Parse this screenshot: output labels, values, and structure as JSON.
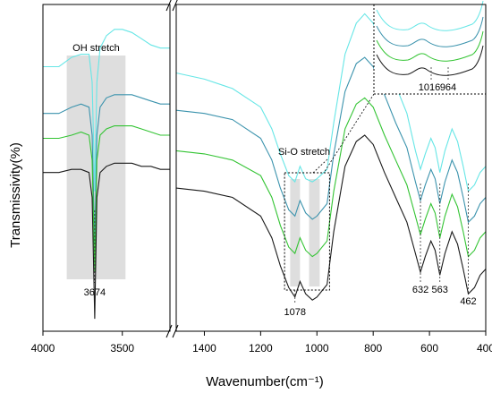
{
  "chart_data": {
    "type": "line",
    "ylabel": "Transmissivity(%)",
    "xlabel": "Wavenumber(cm⁻¹)",
    "left_panel": {
      "xlim": [
        4000,
        3200
      ],
      "ticks": [
        "4000",
        "3500"
      ],
      "tick_values": [
        4000,
        3500
      ],
      "annotation": {
        "label": "OH stretch",
        "band": [
          3850,
          3480
        ]
      },
      "peak_labels": [
        {
          "x": 3674,
          "text": "3674"
        }
      ],
      "series": [
        {
          "color": "#66e6e6",
          "points": [
            [
              4000,
              0.7
            ],
            [
              3900,
              0.7
            ],
            [
              3820,
              0.73
            ],
            [
              3760,
              0.74
            ],
            [
              3710,
              0.74
            ],
            [
              3690,
              0.65
            ],
            [
              3674,
              0.3
            ],
            [
              3660,
              0.65
            ],
            [
              3640,
              0.76
            ],
            [
              3600,
              0.8
            ],
            [
              3550,
              0.82
            ],
            [
              3500,
              0.82
            ],
            [
              3440,
              0.81
            ],
            [
              3380,
              0.79
            ],
            [
              3320,
              0.77
            ],
            [
              3260,
              0.76
            ],
            [
              3200,
              0.76
            ]
          ]
        },
        {
          "color": "#3b93ad",
          "points": [
            [
              4000,
              0.55
            ],
            [
              3900,
              0.55
            ],
            [
              3820,
              0.57
            ],
            [
              3760,
              0.58
            ],
            [
              3710,
              0.57
            ],
            [
              3690,
              0.48
            ],
            [
              3674,
              0.13
            ],
            [
              3660,
              0.48
            ],
            [
              3640,
              0.57
            ],
            [
              3600,
              0.6
            ],
            [
              3550,
              0.61
            ],
            [
              3500,
              0.61
            ],
            [
              3440,
              0.61
            ],
            [
              3380,
              0.6
            ],
            [
              3320,
              0.59
            ],
            [
              3260,
              0.58
            ],
            [
              3200,
              0.58
            ]
          ]
        },
        {
          "color": "#33c433",
          "points": [
            [
              4000,
              0.47
            ],
            [
              3900,
              0.47
            ],
            [
              3820,
              0.48
            ],
            [
              3760,
              0.49
            ],
            [
              3710,
              0.48
            ],
            [
              3690,
              0.4
            ],
            [
              3674,
              0.04
            ],
            [
              3660,
              0.4
            ],
            [
              3640,
              0.48
            ],
            [
              3600,
              0.5
            ],
            [
              3550,
              0.51
            ],
            [
              3500,
              0.51
            ],
            [
              3440,
              0.51
            ],
            [
              3380,
              0.5
            ],
            [
              3320,
              0.49
            ],
            [
              3260,
              0.48
            ],
            [
              3200,
              0.48
            ]
          ]
        },
        {
          "color": "#1a1a1a",
          "points": [
            [
              4000,
              0.36
            ],
            [
              3900,
              0.36
            ],
            [
              3820,
              0.37
            ],
            [
              3760,
              0.37
            ],
            [
              3710,
              0.36
            ],
            [
              3690,
              0.28
            ],
            [
              3674,
              -0.11
            ],
            [
              3660,
              0.28
            ],
            [
              3640,
              0.36
            ],
            [
              3600,
              0.38
            ],
            [
              3550,
              0.39
            ],
            [
              3500,
              0.39
            ],
            [
              3440,
              0.39
            ],
            [
              3380,
              0.38
            ],
            [
              3320,
              0.38
            ],
            [
              3260,
              0.37
            ],
            [
              3200,
              0.37
            ]
          ]
        }
      ]
    },
    "right_panel": {
      "xlim": [
        1500,
        400
      ],
      "ticks": [
        "1400",
        "1200",
        "1000",
        "800",
        "600",
        "400"
      ],
      "tick_values": [
        1400,
        1200,
        1000,
        800,
        600,
        400
      ],
      "annotation": {
        "label": "Si-O stretch",
        "box": [
          1115,
          955
        ]
      },
      "bands": [
        [
          1095,
          1060
        ],
        [
          1028,
          990
        ]
      ],
      "peak_labels": [
        {
          "x": 1078,
          "text": "1078"
        },
        {
          "x": 632,
          "text": "632"
        },
        {
          "x": 563,
          "text": "563"
        },
        {
          "x": 462,
          "text": "462"
        }
      ],
      "inset_labels": [
        "1016",
        "964"
      ],
      "series": [
        {
          "color": "#66e6e6",
          "points": [
            [
              1500,
              0.68
            ],
            [
              1400,
              0.66
            ],
            [
              1300,
              0.63
            ],
            [
              1200,
              0.57
            ],
            [
              1160,
              0.5
            ],
            [
              1130,
              0.42
            ],
            [
              1100,
              0.35
            ],
            [
              1078,
              0.33
            ],
            [
              1060,
              0.38
            ],
            [
              1040,
              0.34
            ],
            [
              1016,
              0.33
            ],
            [
              1000,
              0.34
            ],
            [
              964,
              0.37
            ],
            [
              940,
              0.52
            ],
            [
              900,
              0.74
            ],
            [
              860,
              0.84
            ],
            [
              830,
              0.87
            ],
            [
              800,
              0.84
            ],
            [
              760,
              0.74
            ],
            [
              720,
              0.64
            ],
            [
              680,
              0.55
            ],
            [
              650,
              0.43
            ],
            [
              632,
              0.37
            ],
            [
              615,
              0.42
            ],
            [
              595,
              0.47
            ],
            [
              580,
              0.44
            ],
            [
              563,
              0.36
            ],
            [
              545,
              0.43
            ],
            [
              520,
              0.5
            ],
            [
              500,
              0.46
            ],
            [
              480,
              0.38
            ],
            [
              462,
              0.3
            ],
            [
              440,
              0.32
            ],
            [
              420,
              0.36
            ],
            [
              400,
              0.38
            ]
          ]
        },
        {
          "color": "#3b93ad",
          "points": [
            [
              1500,
              0.56
            ],
            [
              1400,
              0.55
            ],
            [
              1300,
              0.53
            ],
            [
              1200,
              0.47
            ],
            [
              1160,
              0.4
            ],
            [
              1130,
              0.31
            ],
            [
              1100,
              0.24
            ],
            [
              1078,
              0.22
            ],
            [
              1060,
              0.27
            ],
            [
              1040,
              0.23
            ],
            [
              1016,
              0.21
            ],
            [
              1000,
              0.22
            ],
            [
              964,
              0.26
            ],
            [
              940,
              0.42
            ],
            [
              900,
              0.62
            ],
            [
              860,
              0.71
            ],
            [
              830,
              0.73
            ],
            [
              800,
              0.7
            ],
            [
              760,
              0.61
            ],
            [
              720,
              0.52
            ],
            [
              680,
              0.44
            ],
            [
              650,
              0.33
            ],
            [
              632,
              0.27
            ],
            [
              615,
              0.32
            ],
            [
              595,
              0.37
            ],
            [
              580,
              0.34
            ],
            [
              563,
              0.26
            ],
            [
              545,
              0.33
            ],
            [
              520,
              0.4
            ],
            [
              500,
              0.36
            ],
            [
              480,
              0.28
            ],
            [
              462,
              0.2
            ],
            [
              440,
              0.22
            ],
            [
              420,
              0.26
            ],
            [
              400,
              0.28
            ]
          ]
        },
        {
          "color": "#33c433",
          "points": [
            [
              1500,
              0.43
            ],
            [
              1400,
              0.42
            ],
            [
              1300,
              0.4
            ],
            [
              1200,
              0.35
            ],
            [
              1160,
              0.28
            ],
            [
              1130,
              0.19
            ],
            [
              1100,
              0.12
            ],
            [
              1078,
              0.1
            ],
            [
              1060,
              0.15
            ],
            [
              1040,
              0.11
            ],
            [
              1016,
              0.09
            ],
            [
              1000,
              0.1
            ],
            [
              964,
              0.14
            ],
            [
              940,
              0.3
            ],
            [
              900,
              0.5
            ],
            [
              860,
              0.58
            ],
            [
              830,
              0.6
            ],
            [
              800,
              0.57
            ],
            [
              760,
              0.48
            ],
            [
              720,
              0.4
            ],
            [
              680,
              0.32
            ],
            [
              650,
              0.22
            ],
            [
              632,
              0.16
            ],
            [
              615,
              0.21
            ],
            [
              595,
              0.26
            ],
            [
              580,
              0.23
            ],
            [
              563,
              0.15
            ],
            [
              545,
              0.22
            ],
            [
              520,
              0.29
            ],
            [
              500,
              0.25
            ],
            [
              480,
              0.17
            ],
            [
              462,
              0.09
            ],
            [
              440,
              0.11
            ],
            [
              420,
              0.15
            ],
            [
              400,
              0.17
            ]
          ]
        },
        {
          "color": "#1a1a1a",
          "points": [
            [
              1500,
              0.31
            ],
            [
              1400,
              0.3
            ],
            [
              1300,
              0.28
            ],
            [
              1200,
              0.22
            ],
            [
              1160,
              0.15
            ],
            [
              1130,
              0.06
            ],
            [
              1100,
              -0.01
            ],
            [
              1078,
              -0.04
            ],
            [
              1060,
              0.01
            ],
            [
              1040,
              -0.03
            ],
            [
              1016,
              -0.05
            ],
            [
              1000,
              -0.04
            ],
            [
              964,
              0.0
            ],
            [
              940,
              0.17
            ],
            [
              900,
              0.38
            ],
            [
              860,
              0.46
            ],
            [
              830,
              0.48
            ],
            [
              800,
              0.45
            ],
            [
              760,
              0.36
            ],
            [
              720,
              0.28
            ],
            [
              680,
              0.2
            ],
            [
              650,
              0.1
            ],
            [
              632,
              0.04
            ],
            [
              615,
              0.09
            ],
            [
              595,
              0.14
            ],
            [
              580,
              0.11
            ],
            [
              563,
              0.03
            ],
            [
              545,
              0.1
            ],
            [
              520,
              0.17
            ],
            [
              500,
              0.13
            ],
            [
              480,
              0.05
            ],
            [
              462,
              -0.03
            ],
            [
              440,
              -0.01
            ],
            [
              420,
              0.03
            ],
            [
              400,
              0.05
            ]
          ]
        }
      ]
    }
  }
}
